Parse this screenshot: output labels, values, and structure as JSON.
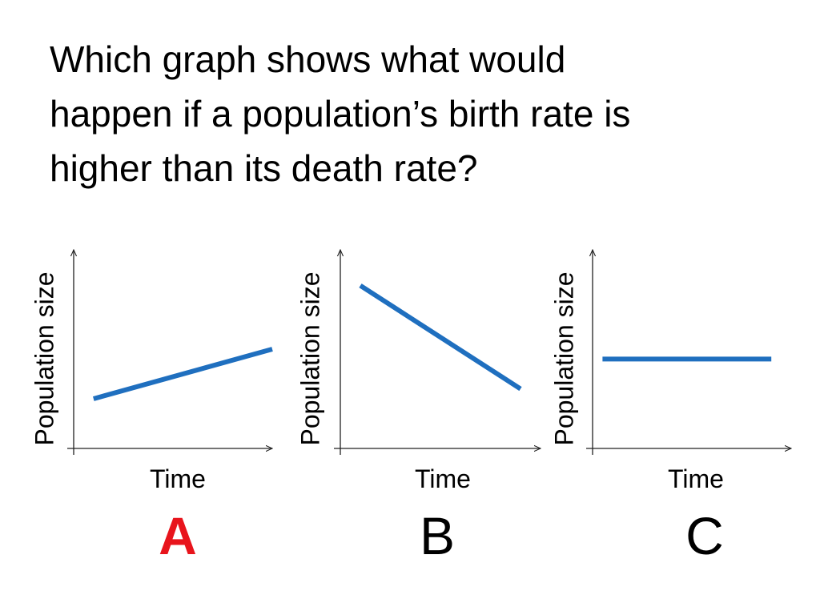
{
  "question": {
    "lines": [
      "Which graph shows what would",
      "happen if a population’s birth rate is",
      "higher than its death rate?"
    ]
  },
  "colors": {
    "line": "#1f6fbf",
    "axis": "#222222",
    "highlight_letter": "#e8141c",
    "letter": "#000000"
  },
  "chart_data": [
    {
      "type": "line",
      "letter": "A",
      "highlighted": true,
      "xlabel": "Time",
      "ylabel": "Population size",
      "x": [
        0.1,
        1.0
      ],
      "y": [
        0.25,
        0.5
      ],
      "xlim": [
        0,
        1
      ],
      "ylim": [
        0,
        1
      ],
      "grid": false
    },
    {
      "type": "line",
      "letter": "B",
      "highlighted": false,
      "xlabel": "Time",
      "ylabel": "Population size",
      "x": [
        0.1,
        0.9
      ],
      "y": [
        0.82,
        0.3
      ],
      "xlim": [
        0,
        1
      ],
      "ylim": [
        0,
        1
      ],
      "grid": false
    },
    {
      "type": "line",
      "letter": "C",
      "highlighted": false,
      "xlabel": "Time",
      "ylabel": "Population size",
      "x": [
        0.05,
        0.9
      ],
      "y": [
        0.45,
        0.45
      ],
      "xlim": [
        0,
        1
      ],
      "ylim": [
        0,
        1
      ],
      "grid": false
    }
  ]
}
